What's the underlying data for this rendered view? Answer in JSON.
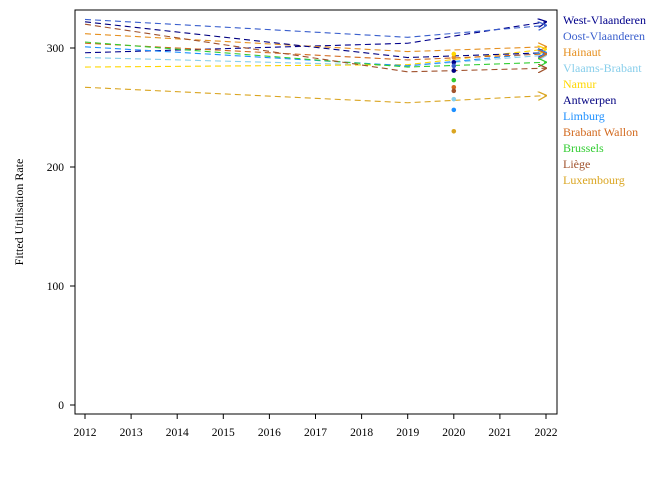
{
  "chart_data": {
    "type": "line",
    "title": "",
    "xlabel": "",
    "ylabel": "Fitted Utilisation Rate",
    "xlim": [
      2012,
      2022
    ],
    "ylim": [
      0,
      330
    ],
    "x_ticks": [
      "2012",
      "2013",
      "2014",
      "2015",
      "2016",
      "2017",
      "2018",
      "2019",
      "2020",
      "2021",
      "2022"
    ],
    "y_ticks": [
      0,
      100,
      200,
      300
    ],
    "legend_position": "right",
    "series": [
      {
        "name": "West-Vlaanderen",
        "color": "#00008b",
        "points": [
          [
            2012,
            296
          ],
          [
            2019,
            304
          ],
          [
            2022,
            322
          ]
        ],
        "point_2020": 288
      },
      {
        "name": "Oost-Vlaanderen",
        "color": "#3a5fcd",
        "points": [
          [
            2012,
            324
          ],
          [
            2019,
            309
          ],
          [
            2022,
            319
          ]
        ],
        "point_2020": 285
      },
      {
        "name": "Hainaut",
        "color": "#e69020",
        "points": [
          [
            2012,
            312
          ],
          [
            2019,
            297
          ],
          [
            2022,
            301
          ]
        ],
        "point_2020": 292
      },
      {
        "name": "Vlaams-Brabant",
        "color": "#87ceeb",
        "points": [
          [
            2012,
            292
          ],
          [
            2019,
            285
          ],
          [
            2022,
            294
          ]
        ],
        "point_2020": 257
      },
      {
        "name": "Namur",
        "color": "#ffd700",
        "points": [
          [
            2012,
            284
          ],
          [
            2019,
            286
          ],
          [
            2022,
            299
          ]
        ],
        "point_2020": 295
      },
      {
        "name": "Antwerpen",
        "color": "#000080",
        "points": [
          [
            2012,
            322
          ],
          [
            2019,
            292
          ],
          [
            2022,
            296
          ]
        ],
        "point_2020": 281
      },
      {
        "name": "Limburg",
        "color": "#1e90ff",
        "points": [
          [
            2012,
            301
          ],
          [
            2019,
            285
          ],
          [
            2022,
            296
          ]
        ],
        "point_2020": 248
      },
      {
        "name": "Brabant Wallon",
        "color": "#d2691e",
        "points": [
          [
            2012,
            304
          ],
          [
            2019,
            290
          ],
          [
            2022,
            295
          ]
        ],
        "point_2020": 267
      },
      {
        "name": "Brussels",
        "color": "#32cd32",
        "points": [
          [
            2012,
            305
          ],
          [
            2019,
            284
          ],
          [
            2022,
            288
          ]
        ],
        "point_2020": 273
      },
      {
        "name": "Liège",
        "color": "#a0522d",
        "points": [
          [
            2012,
            320
          ],
          [
            2019,
            280
          ],
          [
            2022,
            283
          ]
        ],
        "point_2020": 264
      },
      {
        "name": "Luxembourg",
        "color": "#daa520",
        "points": [
          [
            2012,
            267
          ],
          [
            2019,
            254
          ],
          [
            2022,
            260
          ]
        ],
        "point_2020": 230
      }
    ]
  }
}
